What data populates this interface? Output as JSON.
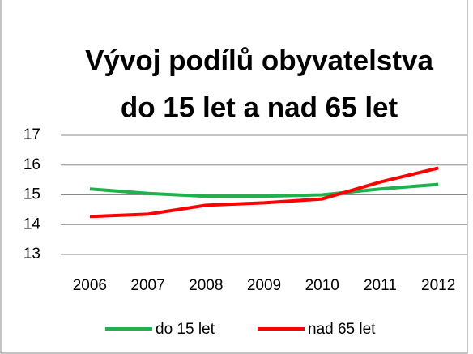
{
  "chart_data": {
    "type": "line",
    "title": [
      "Vývoj podílů obyvatelstva",
      "do 15 let a nad 65 let"
    ],
    "categories": [
      "2006",
      "2007",
      "2008",
      "2009",
      "2010",
      "2011",
      "2012"
    ],
    "series": [
      {
        "name": "do 15 let",
        "color": "#1fb14b",
        "values": [
          15.2,
          15.05,
          14.95,
          14.95,
          15.0,
          15.2,
          15.35
        ]
      },
      {
        "name": "nad 65 let",
        "color": "#ff0000",
        "values": [
          14.27,
          14.35,
          14.65,
          14.73,
          14.86,
          15.43,
          15.9
        ]
      }
    ],
    "ylim": [
      13,
      17
    ],
    "yticks": [
      13,
      14,
      15,
      16,
      17
    ],
    "grid": true,
    "legend": "bottom"
  }
}
